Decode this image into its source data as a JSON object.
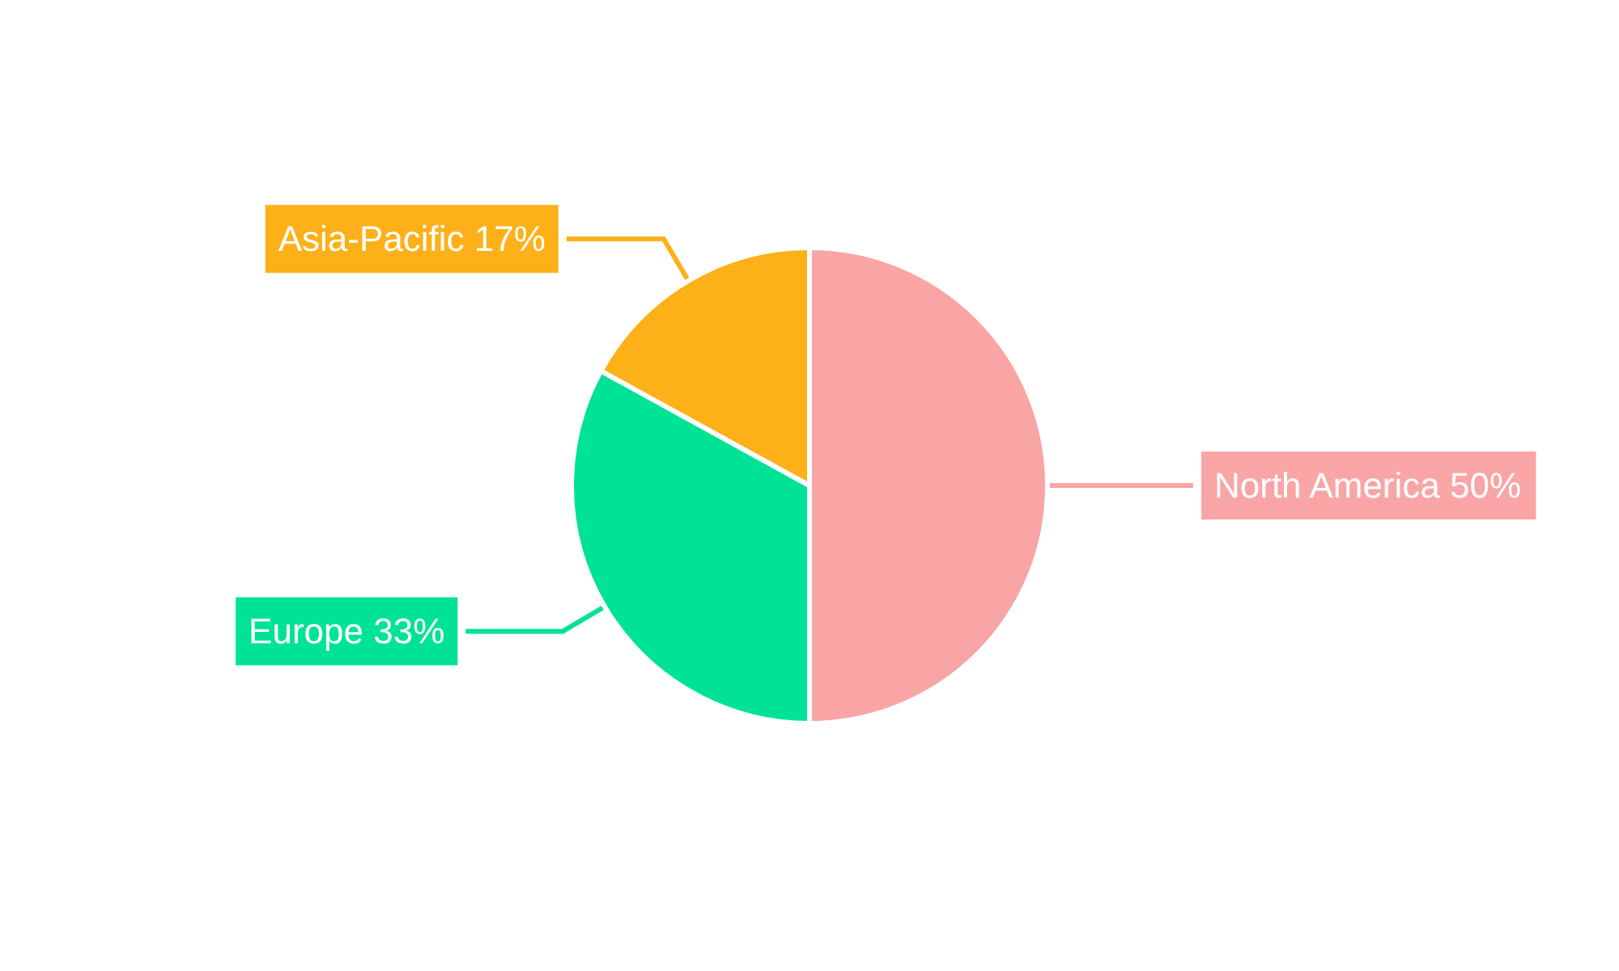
{
  "chart_data": {
    "type": "pie",
    "categories": [
      "North America",
      "Europe",
      "Asia-Pacific"
    ],
    "values": [
      50,
      33,
      17
    ],
    "value_labels": [
      "50%",
      "33%",
      "17%"
    ],
    "colors": [
      "#f9a5a6",
      "#00e396",
      "#feb019"
    ],
    "legend": false
  }
}
